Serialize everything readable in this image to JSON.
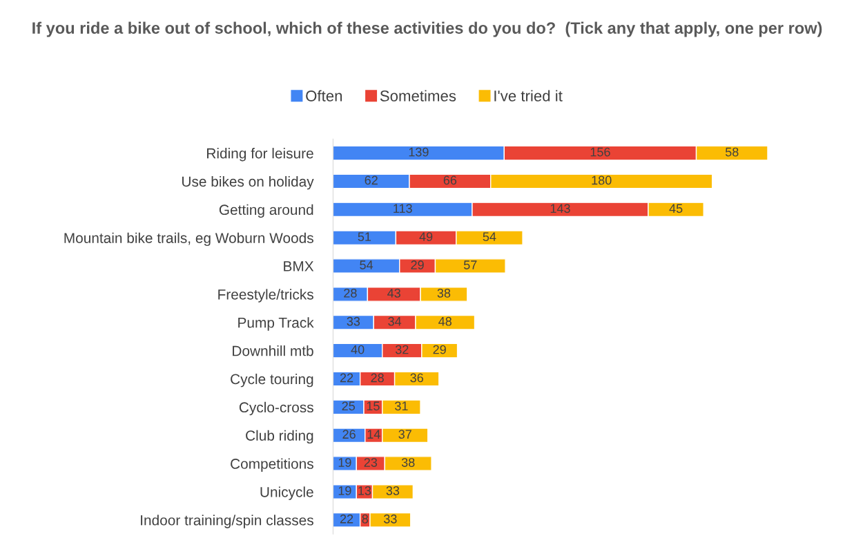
{
  "chart_data": {
    "type": "bar",
    "orientation": "horizontal",
    "stacked": true,
    "title": "If you ride a bike out of school, which of these activities do you do?  (Tick any that apply, one per row)",
    "categories": [
      "Riding for leisure",
      "Use bikes on holiday",
      "Getting around",
      "Mountain bike trails, eg Woburn Woods",
      "BMX",
      "Freestyle/tricks",
      "Pump Track",
      "Downhill mtb",
      "Cycle touring",
      "Cyclo-cross",
      "Club riding",
      "Competitions",
      "Unicycle",
      "Indoor training/spin classes"
    ],
    "series": [
      {
        "name": "Often",
        "color": "#4285f4",
        "values": [
          139,
          62,
          113,
          51,
          54,
          28,
          33,
          40,
          22,
          25,
          26,
          19,
          19,
          22
        ]
      },
      {
        "name": "Sometimes",
        "color": "#ea4335",
        "values": [
          156,
          66,
          143,
          49,
          29,
          43,
          34,
          32,
          28,
          15,
          14,
          23,
          13,
          8
        ]
      },
      {
        "name": "I've tried it",
        "color": "#fbbc04",
        "values": [
          58,
          180,
          45,
          54,
          57,
          38,
          48,
          29,
          36,
          31,
          37,
          38,
          33,
          33
        ]
      }
    ],
    "data_labels": true,
    "legend": "top",
    "grid": false
  }
}
